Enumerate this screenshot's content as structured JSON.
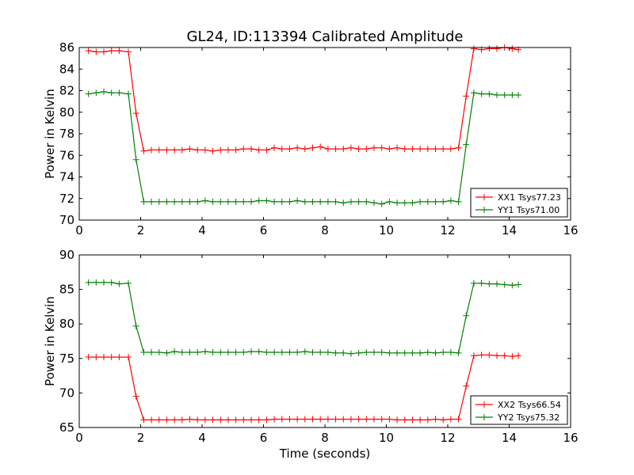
{
  "title": "GL24, ID:113394 Calibrated Amplitude",
  "colors": {
    "xx": "#ff0000",
    "yy": "#008000"
  },
  "chart_data": [
    {
      "type": "line",
      "title": "GL24, ID:113394 Calibrated Amplitude",
      "xlabel": "",
      "ylabel": "Power in Kelvin",
      "xlim": [
        0,
        16
      ],
      "ylim": [
        70,
        86
      ],
      "xticks": [
        0,
        2,
        4,
        6,
        8,
        10,
        12,
        14,
        16
      ],
      "yticks": [
        70,
        72,
        74,
        76,
        78,
        80,
        82,
        84,
        86
      ],
      "legend_position": "lower-right",
      "x": [
        0.3,
        0.55,
        0.8,
        1.05,
        1.3,
        1.6,
        1.85,
        2.1,
        2.35,
        2.6,
        2.85,
        3.1,
        3.35,
        3.6,
        3.85,
        4.1,
        4.35,
        4.6,
        4.85,
        5.1,
        5.35,
        5.6,
        5.85,
        6.1,
        6.35,
        6.6,
        6.85,
        7.1,
        7.35,
        7.6,
        7.85,
        8.1,
        8.35,
        8.6,
        8.85,
        9.1,
        9.35,
        9.6,
        9.85,
        10.1,
        10.35,
        10.6,
        10.85,
        11.1,
        11.35,
        11.6,
        11.85,
        12.1,
        12.35,
        12.6,
        12.85,
        13.1,
        13.35,
        13.6,
        13.85,
        14.1,
        14.3
      ],
      "series": [
        {
          "name": "XX1 Tsys77.23",
          "color": "#ff0000",
          "values": [
            85.7,
            85.6,
            85.6,
            85.7,
            85.7,
            85.6,
            79.9,
            76.4,
            76.5,
            76.5,
            76.5,
            76.5,
            76.5,
            76.6,
            76.5,
            76.5,
            76.4,
            76.5,
            76.5,
            76.5,
            76.6,
            76.6,
            76.5,
            76.5,
            76.7,
            76.6,
            76.6,
            76.7,
            76.6,
            76.7,
            76.8,
            76.6,
            76.6,
            76.6,
            76.7,
            76.6,
            76.6,
            76.7,
            76.7,
            76.6,
            76.7,
            76.6,
            76.6,
            76.6,
            76.6,
            76.6,
            76.6,
            76.6,
            76.7,
            81.5,
            85.9,
            85.8,
            85.9,
            85.9,
            86.0,
            85.9,
            85.8
          ]
        },
        {
          "name": "YY1 Tsys71.00",
          "color": "#008000",
          "values": [
            81.7,
            81.8,
            81.9,
            81.8,
            81.8,
            81.7,
            75.6,
            71.7,
            71.7,
            71.7,
            71.7,
            71.7,
            71.7,
            71.7,
            71.7,
            71.8,
            71.7,
            71.7,
            71.7,
            71.7,
            71.7,
            71.7,
            71.8,
            71.8,
            71.7,
            71.7,
            71.7,
            71.8,
            71.7,
            71.7,
            71.7,
            71.7,
            71.7,
            71.6,
            71.7,
            71.7,
            71.7,
            71.6,
            71.5,
            71.7,
            71.6,
            71.6,
            71.6,
            71.7,
            71.7,
            71.7,
            71.7,
            71.8,
            71.7,
            77.0,
            81.8,
            81.7,
            81.7,
            81.6,
            81.6,
            81.6,
            81.6
          ]
        }
      ]
    },
    {
      "type": "line",
      "title": "",
      "xlabel": "Time (seconds)",
      "ylabel": "Power in Kelvin",
      "xlim": [
        0,
        16
      ],
      "ylim": [
        65,
        90
      ],
      "xticks": [
        0,
        2,
        4,
        6,
        8,
        10,
        12,
        14,
        16
      ],
      "yticks": [
        65,
        70,
        75,
        80,
        85,
        90
      ],
      "legend_position": "lower-right",
      "x": [
        0.3,
        0.55,
        0.8,
        1.05,
        1.3,
        1.6,
        1.85,
        2.1,
        2.35,
        2.6,
        2.85,
        3.1,
        3.35,
        3.6,
        3.85,
        4.1,
        4.35,
        4.6,
        4.85,
        5.1,
        5.35,
        5.6,
        5.85,
        6.1,
        6.35,
        6.6,
        6.85,
        7.1,
        7.35,
        7.6,
        7.85,
        8.1,
        8.35,
        8.6,
        8.85,
        9.1,
        9.35,
        9.6,
        9.85,
        10.1,
        10.35,
        10.6,
        10.85,
        11.1,
        11.35,
        11.6,
        11.85,
        12.1,
        12.35,
        12.6,
        12.85,
        13.1,
        13.35,
        13.6,
        13.85,
        14.1,
        14.3
      ],
      "series": [
        {
          "name": "XX2 Tsys66.54",
          "color": "#ff0000",
          "values": [
            75.2,
            75.2,
            75.2,
            75.2,
            75.2,
            75.2,
            69.5,
            66.1,
            66.1,
            66.1,
            66.1,
            66.1,
            66.1,
            66.2,
            66.1,
            66.1,
            66.1,
            66.1,
            66.1,
            66.1,
            66.1,
            66.1,
            66.1,
            66.1,
            66.2,
            66.2,
            66.2,
            66.2,
            66.2,
            66.2,
            66.2,
            66.2,
            66.2,
            66.2,
            66.2,
            66.2,
            66.2,
            66.2,
            66.2,
            66.2,
            66.1,
            66.1,
            66.1,
            66.1,
            66.1,
            66.2,
            66.1,
            66.2,
            66.2,
            71.0,
            75.4,
            75.5,
            75.5,
            75.4,
            75.4,
            75.3,
            75.4
          ]
        },
        {
          "name": "YY2 Tsys75.32",
          "color": "#008000",
          "values": [
            86.0,
            86.0,
            86.0,
            86.0,
            85.8,
            85.9,
            79.7,
            75.9,
            75.9,
            75.9,
            75.8,
            76.0,
            75.9,
            75.9,
            75.9,
            76.0,
            75.9,
            75.9,
            75.9,
            75.9,
            75.9,
            76.0,
            76.0,
            75.9,
            75.9,
            75.9,
            75.9,
            75.9,
            76.0,
            75.9,
            75.9,
            75.9,
            75.8,
            75.8,
            75.7,
            75.8,
            75.9,
            75.9,
            75.9,
            75.8,
            75.8,
            75.8,
            75.8,
            75.8,
            75.9,
            75.8,
            75.9,
            75.9,
            75.8,
            81.2,
            85.9,
            85.9,
            85.8,
            85.8,
            85.7,
            85.6,
            85.7
          ]
        }
      ]
    }
  ]
}
